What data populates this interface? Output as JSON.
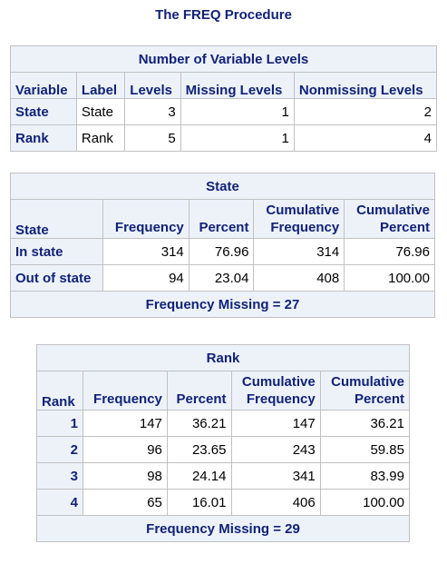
{
  "page_title": "The FREQ Procedure",
  "levels_table": {
    "caption": "Number of Variable Levels",
    "headers": [
      "Variable",
      "Label",
      "Levels",
      "Missing Levels",
      "Nonmissing Levels"
    ],
    "rows": [
      {
        "variable": "State",
        "label": "State",
        "levels": "3",
        "missing": "1",
        "nonmissing": "2"
      },
      {
        "variable": "Rank",
        "label": "Rank",
        "levels": "5",
        "missing": "1",
        "nonmissing": "4"
      }
    ]
  },
  "state_table": {
    "caption": "State",
    "headers": {
      "var": "State",
      "frequency": "Frequency",
      "percent": "Percent",
      "cum_freq_1": "Cumulative",
      "cum_freq_2": "Frequency",
      "cum_pct_1": "Cumulative",
      "cum_pct_2": "Percent"
    },
    "rows": [
      {
        "value": "In state",
        "frequency": "314",
        "percent": "76.96",
        "cum_frequency": "314",
        "cum_percent": "76.96"
      },
      {
        "value": "Out of state",
        "frequency": "94",
        "percent": "23.04",
        "cum_frequency": "408",
        "cum_percent": "100.00"
      }
    ],
    "footer": "Frequency Missing = 27"
  },
  "rank_table": {
    "caption": "Rank",
    "headers": {
      "var": "Rank",
      "frequency": "Frequency",
      "percent": "Percent",
      "cum_freq_1": "Cumulative",
      "cum_freq_2": "Frequency",
      "cum_pct_1": "Cumulative",
      "cum_pct_2": "Percent"
    },
    "rows": [
      {
        "value": "1",
        "frequency": "147",
        "percent": "36.21",
        "cum_frequency": "147",
        "cum_percent": "36.21"
      },
      {
        "value": "2",
        "frequency": "96",
        "percent": "23.65",
        "cum_frequency": "243",
        "cum_percent": "59.85"
      },
      {
        "value": "3",
        "frequency": "98",
        "percent": "24.14",
        "cum_frequency": "341",
        "cum_percent": "83.99"
      },
      {
        "value": "4",
        "frequency": "65",
        "percent": "16.01",
        "cum_frequency": "406",
        "cum_percent": "100.00"
      }
    ],
    "footer": "Frequency Missing = 29"
  }
}
